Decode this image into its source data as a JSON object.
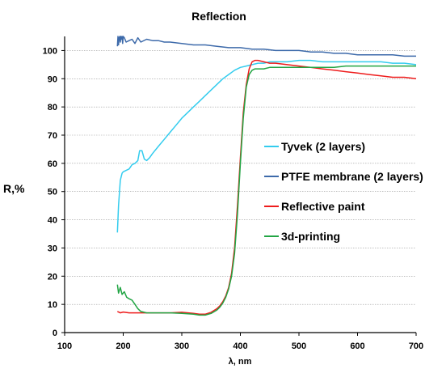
{
  "chart_data": {
    "type": "line",
    "title": "Reflection",
    "xlabel": "λ, nm",
    "ylabel": "R,%",
    "xlim": [
      100,
      700
    ],
    "ylim": [
      0,
      105
    ],
    "xticks": [
      100,
      200,
      300,
      400,
      500,
      600,
      700
    ],
    "yticks": [
      0,
      10,
      20,
      30,
      40,
      50,
      60,
      70,
      80,
      90,
      100
    ],
    "grid": true,
    "legend_position": "right",
    "series": [
      {
        "name": "Tyvek (2 layers)",
        "color": "#33ccee",
        "x": [
          190,
          192,
          195,
          198,
          200,
          205,
          210,
          215,
          220,
          225,
          228,
          232,
          236,
          240,
          245,
          250,
          260,
          270,
          280,
          290,
          300,
          310,
          320,
          330,
          340,
          350,
          360,
          370,
          380,
          390,
          400,
          410,
          420,
          430,
          440,
          450,
          460,
          480,
          500,
          520,
          540,
          560,
          580,
          600,
          620,
          640,
          660,
          680,
          700
        ],
        "y": [
          35.5,
          45,
          54,
          56.5,
          57,
          57.5,
          58,
          59.5,
          60,
          61,
          64.5,
          64.5,
          61.5,
          61,
          62,
          63.5,
          66,
          68.5,
          71,
          73.5,
          76,
          78,
          80,
          82,
          84,
          86,
          88,
          90,
          91.5,
          93,
          94,
          94.5,
          95,
          95.5,
          95.5,
          96,
          96,
          96,
          96.5,
          96.5,
          96,
          96,
          96,
          96,
          96,
          96,
          95.5,
          95.5,
          95
        ]
      },
      {
        "name": "PTFE membrane (2 layers)",
        "color": "#3d6aaa",
        "x": [
          190,
          191,
          192,
          193,
          194,
          195,
          196,
          197,
          198,
          199,
          200,
          202,
          205,
          210,
          215,
          220,
          225,
          230,
          240,
          250,
          260,
          270,
          280,
          300,
          320,
          340,
          360,
          380,
          400,
          420,
          440,
          460,
          480,
          500,
          520,
          540,
          560,
          580,
          600,
          620,
          640,
          660,
          680,
          700
        ],
        "y": [
          101.5,
          105,
          102,
          104.5,
          105,
          103,
          105,
          104,
          105,
          102.5,
          105,
          104.5,
          103,
          103.5,
          104,
          102.5,
          104.5,
          103,
          104,
          103.5,
          103.5,
          103,
          103,
          102.5,
          102,
          102,
          101.5,
          101,
          101,
          100.5,
          100.5,
          100,
          100,
          100,
          99.5,
          99.5,
          99,
          99,
          98.5,
          98.5,
          98.5,
          98.5,
          98,
          98
        ]
      },
      {
        "name": "Reflective paint",
        "color": "#ee1c1c",
        "x": [
          190,
          195,
          200,
          210,
          220,
          230,
          240,
          260,
          280,
          300,
          320,
          330,
          340,
          350,
          360,
          365,
          370,
          375,
          380,
          385,
          390,
          395,
          400,
          405,
          410,
          415,
          420,
          425,
          430,
          440,
          450,
          460,
          480,
          500,
          520,
          540,
          560,
          580,
          600,
          620,
          640,
          660,
          680,
          700
        ],
        "y": [
          7.5,
          7,
          7.3,
          7,
          7,
          7,
          7,
          7,
          7,
          7.2,
          6.8,
          6.5,
          6.5,
          7.2,
          8.5,
          9.5,
          11,
          13,
          16,
          21,
          30,
          45,
          62,
          78,
          88,
          93.5,
          96,
          96.5,
          96.5,
          96,
          95.5,
          95.5,
          95,
          94.5,
          94,
          93.5,
          93,
          92.5,
          92,
          91.5,
          91,
          90.5,
          90.5,
          90
        ]
      },
      {
        "name": "3d-printing",
        "color": "#22a544",
        "x": [
          190,
          192,
          195,
          198,
          202,
          206,
          210,
          215,
          220,
          225,
          230,
          240,
          260,
          280,
          300,
          320,
          330,
          340,
          350,
          360,
          365,
          370,
          375,
          380,
          385,
          390,
          395,
          400,
          405,
          410,
          415,
          420,
          425,
          430,
          440,
          450,
          460,
          480,
          500,
          520,
          540,
          560,
          580,
          600,
          620,
          640,
          660,
          680,
          700
        ],
        "y": [
          17,
          14,
          16,
          13.5,
          14.5,
          12.5,
          12,
          11.5,
          10,
          8.5,
          7.5,
          7,
          7,
          7,
          6.8,
          6.5,
          6.2,
          6.2,
          6.8,
          8,
          9,
          10.5,
          12.5,
          15.5,
          20,
          28,
          42,
          60,
          76,
          87,
          91.5,
          93,
          93.5,
          93.5,
          93.5,
          94,
          94,
          94,
          94,
          94,
          94,
          94,
          94.5,
          94.5,
          94.5,
          94.5,
          94.5,
          94.5,
          94.5
        ]
      }
    ]
  }
}
